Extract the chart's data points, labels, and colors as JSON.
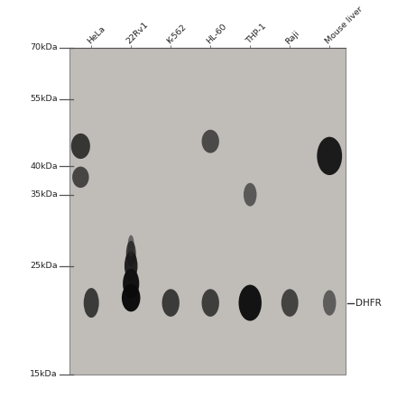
{
  "gel_bg": "#c0bdb9",
  "white_bg": "#ffffff",
  "lane_labels": [
    "HeLa",
    "22Rv1",
    "K-562",
    "HL-60",
    "THP-1",
    "Raji",
    "Mouse liver"
  ],
  "mw_labels": [
    "70kDa",
    "55kDa",
    "40kDa",
    "35kDa",
    "25kDa",
    "15kDa"
  ],
  "mw_values": [
    70,
    55,
    40,
    35,
    25,
    15
  ],
  "dhfr_label": "DHFR",
  "band_dark": "#111111",
  "band_mid": "#2a2a2a",
  "band_light": "#444444",
  "tick_color": "#555555",
  "label_color": "#222222",
  "gel_border": "#888888",
  "separator_line": "#555555",
  "figsize": [
    4.4,
    4.41
  ],
  "dpi": 100
}
